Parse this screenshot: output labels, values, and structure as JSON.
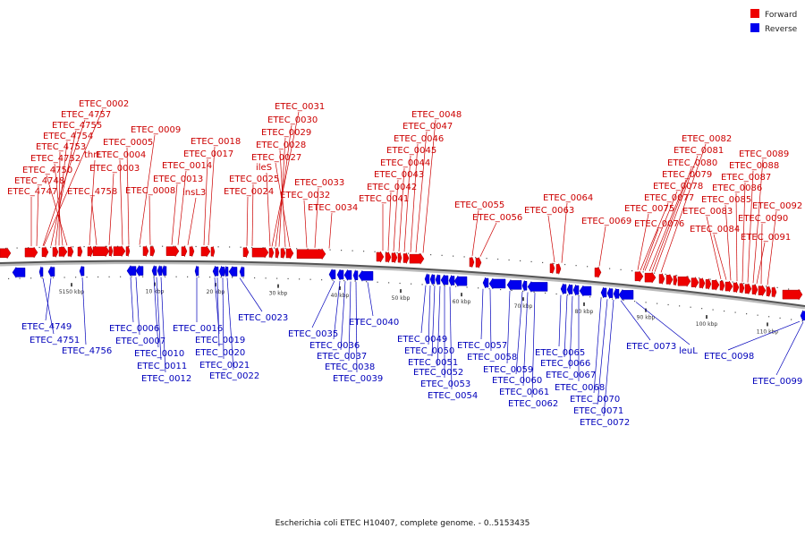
{
  "legend": {
    "forward_label": "Forward",
    "reverse_label": "Reverse",
    "forward_color": "#ee0000",
    "reverse_color": "#0000ee"
  },
  "caption": "Escherichia coli ETEC H10407, complete genome. - 0..5153435",
  "axis_ticks": [
    "5150 kbp",
    "10 kbp",
    "20 kbp",
    "30 kbp",
    "40 kbp",
    "50 kbp",
    "60 kbp",
    "70 kbp",
    "80 kbp",
    "90 kbp",
    "100 kbp",
    "110 kbp"
  ],
  "forward_genes": [
    "ETEC_0002",
    "ETEC_4757",
    "ETEC_4755",
    "ETEC_4754",
    "ETEC_4753",
    "ETEC_4752",
    "ETEC_4750",
    "ETEC_4748",
    "ETEC_4747",
    "thrL",
    "ETEC_4758",
    "ETEC_0005",
    "ETEC_0004",
    "ETEC_0003",
    "ETEC_0009",
    "ETEC_0008",
    "ETEC_0014",
    "ETEC_0013",
    "insL3",
    "ETEC_0018",
    "ETEC_0017",
    "ETEC_0025",
    "ETEC_0024",
    "ileS",
    "ETEC_0031",
    "ETEC_0030",
    "ETEC_0029",
    "ETEC_0028",
    "ETEC_0027",
    "ETEC_0033",
    "ETEC_0032",
    "ETEC_0034",
    "ETEC_0048",
    "ETEC_0047",
    "ETEC_0046",
    "ETEC_0045",
    "ETEC_0044",
    "ETEC_0043",
    "ETEC_0042",
    "ETEC_0041",
    "ETEC_0055",
    "ETEC_0056",
    "ETEC_0064",
    "ETEC_0063",
    "ETEC_0069",
    "ETEC_0082",
    "ETEC_0081",
    "ETEC_0080",
    "ETEC_0079",
    "ETEC_0078",
    "ETEC_0077",
    "ETEC_0075",
    "ETEC_0076",
    "ETEC_0089",
    "ETEC_0088",
    "ETEC_0087",
    "ETEC_0086",
    "ETEC_0085",
    "ETEC_0083",
    "ETEC_0084",
    "ETEC_0092",
    "ETEC_0090",
    "ETEC_0091"
  ],
  "reverse_genes": [
    "ETEC_4749",
    "ETEC_4751",
    "ETEC_4756",
    "ETEC_0006",
    "ETEC_0007",
    "ETEC_0010",
    "ETEC_0011",
    "ETEC_0012",
    "ETEC_0016",
    "ETEC_0019",
    "ETEC_0020",
    "ETEC_0021",
    "ETEC_0022",
    "ETEC_0023",
    "ETEC_0035",
    "ETEC_0036",
    "ETEC_0037",
    "ETEC_0038",
    "ETEC_0039",
    "ETEC_0040",
    "ETEC_0049",
    "ETEC_0050",
    "ETEC_0051",
    "ETEC_0052",
    "ETEC_0053",
    "ETEC_0054",
    "ETEC_0057",
    "ETEC_0058",
    "ETEC_0059",
    "ETEC_0060",
    "ETEC_0061",
    "ETEC_0062",
    "ETEC_0065",
    "ETEC_0066",
    "ETEC_0067",
    "ETEC_0068",
    "ETEC_0070",
    "ETEC_0071",
    "ETEC_0072",
    "ETEC_0073",
    "leuL",
    "ETEC_0098",
    "ETEC_0099"
  ]
}
